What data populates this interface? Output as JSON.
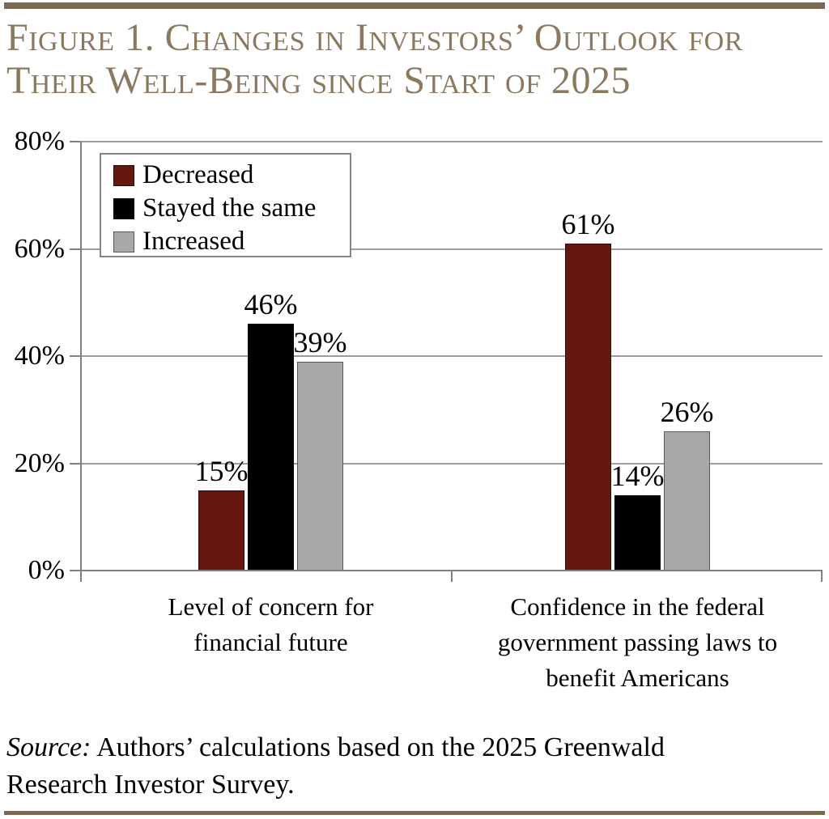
{
  "figure": {
    "title_line1": "Figure 1. Changes in Investors’ Outlook for",
    "title_line2": "Their Well-Being since Start of 2025",
    "source_prefix": "Source:",
    "source_line1_rest": " Authors’ calculations based on the 2025 Greenwald",
    "source_line2": "Research Investor Survey."
  },
  "colors": {
    "rule": "#7a6a52",
    "title_text": "#8a795e",
    "axis": "#808080",
    "gridline": "#9d9d9d",
    "decreased": "#641810",
    "stayed_the_same": "#000000",
    "increased": "#a8a8a8"
  },
  "chart_data": {
    "type": "bar",
    "title": "Figure 1. Changes in Investors’ Outlook for Their Well-Being since Start of 2025",
    "categories": [
      "Level of concern for financial future",
      "Confidence in the federal government passing laws to benefit Americans"
    ],
    "category_label_lines": [
      [
        "Level of concern for",
        "financial future"
      ],
      [
        "Confidence in the federal",
        "government passing laws to",
        "benefit Americans"
      ]
    ],
    "series": [
      {
        "name": "Decreased",
        "color": "#641810",
        "border": "#2a0b07",
        "values": [
          15,
          61
        ]
      },
      {
        "name": "Stayed the same",
        "color": "#000000",
        "border": "#000000",
        "values": [
          46,
          14
        ]
      },
      {
        "name": "Increased",
        "color": "#a8a8a8",
        "border": "#595959",
        "values": [
          39,
          26
        ]
      }
    ],
    "value_labels": [
      [
        "15%",
        "46%",
        "39%"
      ],
      [
        "61%",
        "14%",
        "26%"
      ]
    ],
    "ylim": [
      0,
      80
    ],
    "yticks": [
      0,
      20,
      40,
      60,
      80
    ],
    "ytick_labels": [
      "0%",
      "20%",
      "40%",
      "60%",
      "80%"
    ],
    "grid": true,
    "legend_position": "top-left-inside",
    "source": "Source: Authors’ calculations based on the 2025 Greenwald Research Investor Survey."
  }
}
